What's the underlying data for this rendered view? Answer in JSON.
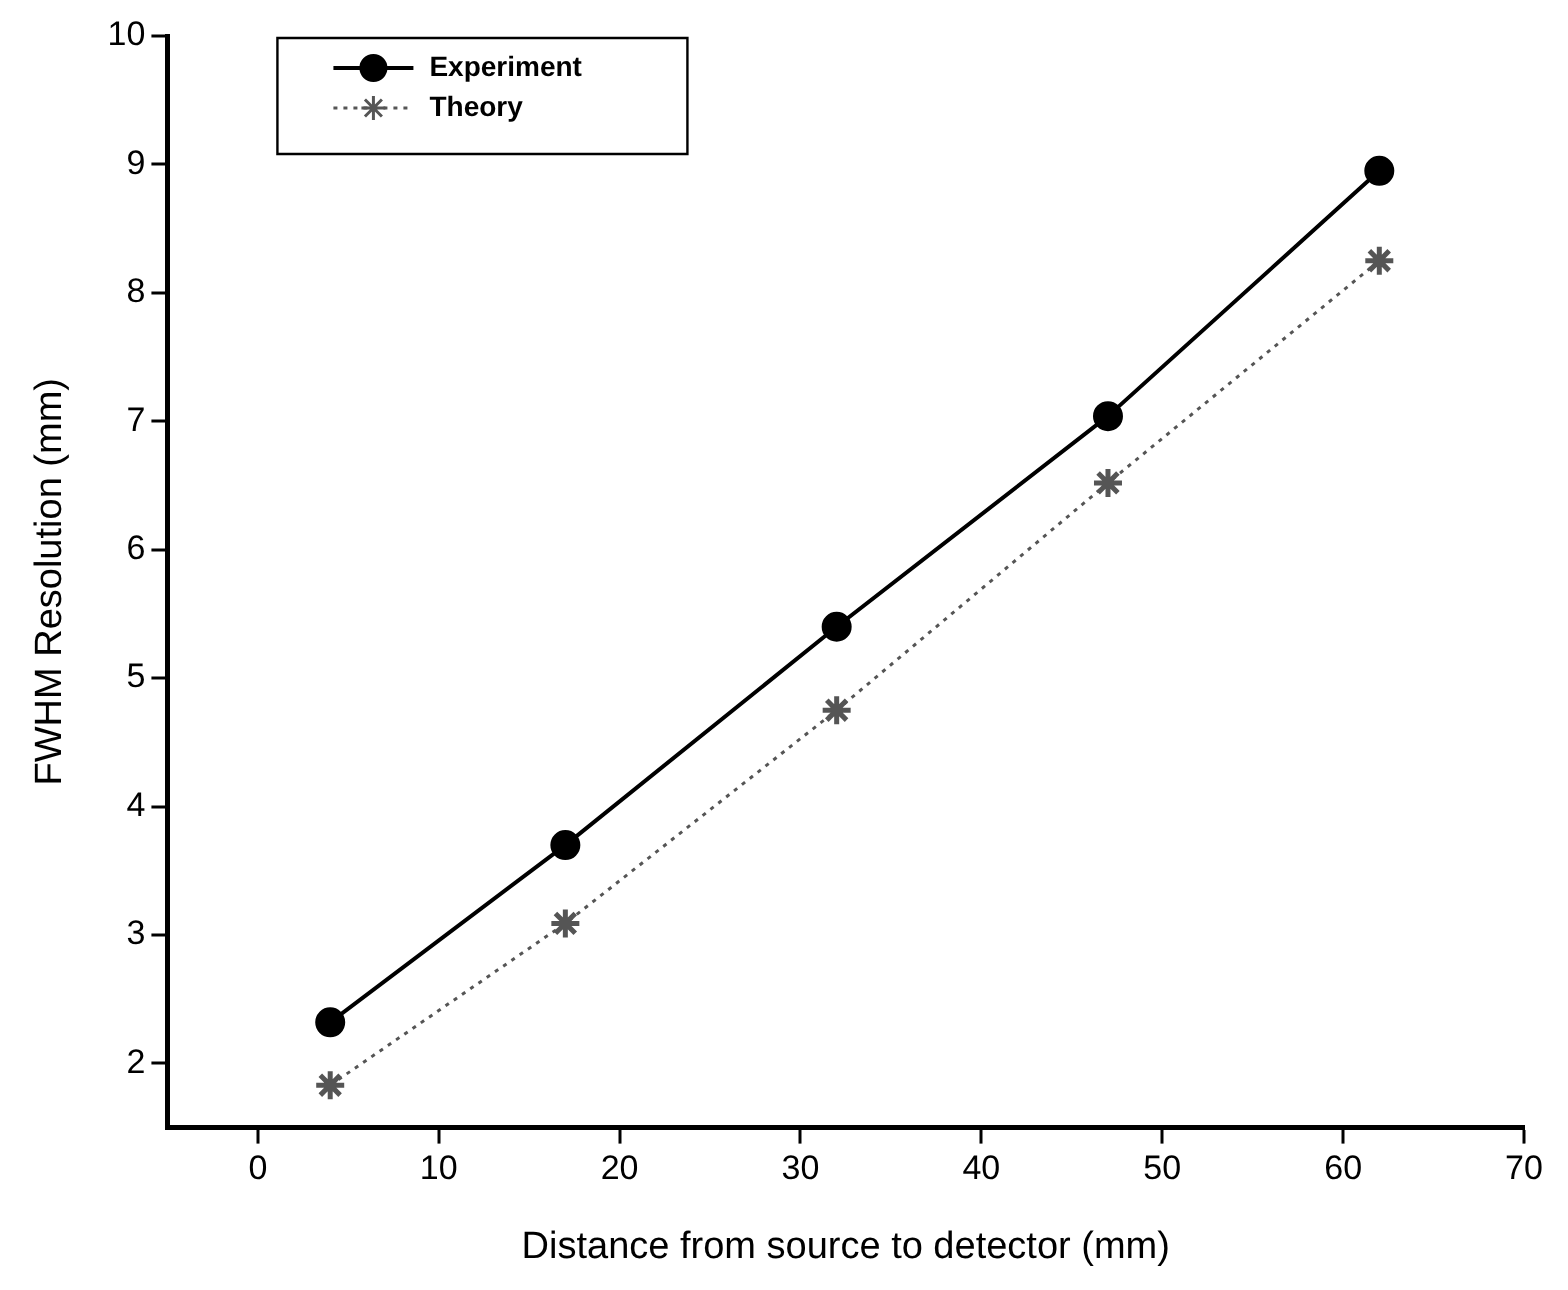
{
  "chart_data": {
    "type": "line",
    "xlabel": "Distance from source to detector (mm)",
    "ylabel": "FWHM Resolution (mm)",
    "x": [
      4,
      17,
      32,
      47,
      62
    ],
    "series": [
      {
        "name": "Experiment",
        "color": "#000000",
        "values": [
          2.32,
          3.7,
          5.4,
          7.04,
          8.95
        ],
        "marker": "circle",
        "line_style": "solid"
      },
      {
        "name": "Theory",
        "color": "#555555",
        "values": [
          1.83,
          3.09,
          4.75,
          6.52,
          8.25
        ],
        "marker": "cross",
        "line_style": "dotted"
      }
    ],
    "xlim": [
      -5,
      70
    ],
    "xticks": [
      0,
      10,
      20,
      30,
      40,
      50,
      60,
      70
    ],
    "ylim": [
      1.5,
      10
    ],
    "yticks": [
      2,
      3,
      4,
      5,
      6,
      7,
      8,
      9,
      10
    ],
    "grid": false,
    "legend": "top left"
  }
}
